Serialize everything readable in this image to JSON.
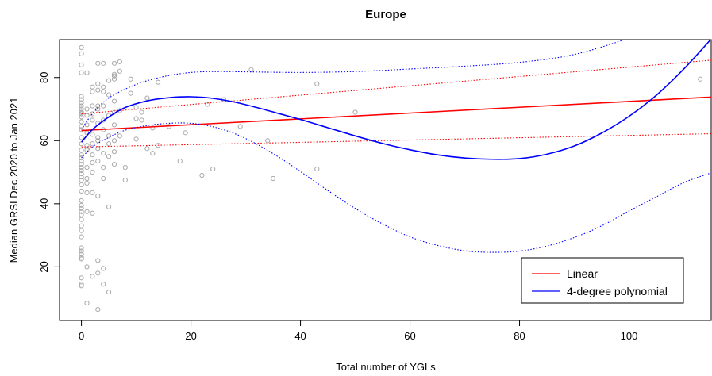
{
  "chart_data": {
    "type": "scatter",
    "title": "Europe",
    "xlabel": "Total number of YGLs",
    "ylabel": "Median GRSI Dec 2020 to Jan 2021",
    "xlim": [
      -4,
      115
    ],
    "ylim": [
      3,
      92
    ],
    "x_ticks": [
      0,
      20,
      40,
      60,
      80,
      100
    ],
    "y_ticks": [
      20,
      40,
      60,
      80
    ],
    "x_tick_labels": [
      "0",
      "20",
      "40",
      "60",
      "80",
      "100"
    ],
    "y_tick_labels": [
      "20",
      "40",
      "60",
      "80"
    ],
    "grid": false,
    "legend_position": "bottom-right",
    "colors": {
      "points": "#a9a9a9",
      "linear": "#ff0000",
      "poly": "#0000ff"
    },
    "points": {
      "x": [
        0,
        0,
        0,
        0,
        0,
        0,
        0,
        0,
        0,
        0,
        0,
        0,
        0,
        0,
        0,
        0,
        0,
        0,
        0,
        0,
        0,
        0,
        0,
        0,
        0,
        0,
        0,
        0,
        0,
        0,
        0,
        0,
        0,
        0,
        0,
        0,
        0,
        0,
        0,
        0,
        0,
        0,
        0,
        0,
        0,
        0,
        1,
        1,
        1,
        1,
        1,
        1,
        1,
        1,
        1,
        1,
        1,
        1,
        1,
        1,
        2,
        2,
        2,
        2,
        2,
        2,
        2,
        2,
        2,
        2,
        2,
        2,
        2,
        3,
        3,
        3,
        3,
        3,
        3,
        3,
        3,
        3,
        3,
        3,
        3,
        3,
        3,
        4,
        4,
        4,
        4,
        4,
        4,
        4,
        4,
        4,
        4,
        4,
        5,
        5,
        5,
        5,
        5,
        5,
        5,
        5,
        6,
        6,
        6,
        6,
        6,
        6,
        6,
        6,
        6,
        6,
        7,
        7,
        7,
        7,
        8,
        8,
        9,
        9,
        10,
        10,
        10,
        11,
        11,
        12,
        12,
        13,
        13,
        14,
        14,
        16,
        18,
        19,
        22,
        23,
        24,
        26,
        29,
        31,
        34,
        35,
        43,
        43,
        50,
        113
      ],
      "y": [
        89.5,
        87.5,
        84,
        81.5,
        74,
        73,
        72,
        71,
        70,
        69,
        68.5,
        67.5,
        66,
        64.5,
        63.5,
        61,
        59,
        57,
        55.5,
        54.5,
        53.5,
        52.5,
        51.5,
        50.5,
        49.5,
        48.5,
        47.5,
        46,
        44,
        41,
        39.5,
        38.5,
        37.5,
        36.5,
        35,
        33,
        31.5,
        29.5,
        26,
        25,
        24,
        23,
        22.5,
        16.5,
        14.5,
        14,
        81.5,
        70,
        68,
        65,
        62.5,
        58.5,
        57,
        51.5,
        48,
        46.5,
        43.5,
        37.5,
        20,
        8.5,
        77,
        75.5,
        71,
        68.5,
        66.5,
        62,
        59,
        55.5,
        53,
        50,
        43.5,
        37,
        17,
        84.5,
        78,
        76,
        71,
        70,
        65.5,
        61,
        60,
        57.5,
        53.5,
        42.5,
        22,
        18,
        6.5,
        84.5,
        77,
        75.5,
        71,
        66.5,
        63.5,
        56,
        51.5,
        48,
        19.5,
        14.5,
        79,
        74.5,
        68,
        61.5,
        59,
        55,
        39,
        12,
        84.5,
        81,
        80.5,
        79.5,
        72.5,
        69,
        65,
        60,
        56.5,
        52.5,
        85,
        82,
        69.5,
        61.5,
        51.5,
        47.5,
        79.5,
        75,
        70.5,
        67,
        60.5,
        69,
        66.5,
        73.5,
        57.5,
        64,
        56,
        78.5,
        58.5,
        64.5,
        53.5,
        62.5,
        49,
        71.5,
        51,
        73,
        64.5,
        82.5,
        60,
        48,
        78,
        51,
        69,
        79.5
      ]
    },
    "series": [
      {
        "name": "Linear",
        "type": "line",
        "style": "solid",
        "x": [
          0,
          115
        ],
        "y": [
          63.2,
          73.8
        ]
      },
      {
        "name": "",
        "type": "line",
        "style": "dotted",
        "x": [
          0,
          115
        ],
        "y": [
          68.5,
          85.5
        ]
      },
      {
        "name": "",
        "type": "line",
        "style": "dotted",
        "x": [
          0,
          115
        ],
        "y": [
          58.0,
          62.2
        ]
      },
      {
        "name": "4-degree polynomial",
        "type": "line",
        "style": "solid",
        "x": [
          0,
          2,
          5,
          8,
          12,
          16,
          20,
          24,
          28,
          32,
          36,
          40,
          45,
          50,
          55,
          60,
          65,
          70,
          75,
          80,
          85,
          90,
          95,
          100,
          105,
          110,
          115
        ],
        "y": [
          59.5,
          63.5,
          67.5,
          70.5,
          72.6,
          73.6,
          73.9,
          73.4,
          72.2,
          70.5,
          68.6,
          66.7,
          64.1,
          61.5,
          59.1,
          57.1,
          55.5,
          54.5,
          54.1,
          54.3,
          55.7,
          58.3,
          62.4,
          67.7,
          74.4,
          82.7,
          92.2
        ]
      },
      {
        "name": "",
        "type": "line",
        "style": "dotted",
        "x": [
          0,
          2,
          5,
          10,
          15,
          20,
          25,
          30,
          40,
          50,
          60,
          70,
          80,
          90,
          100,
          103
        ],
        "y": [
          63.5,
          68.5,
          73.5,
          77.8,
          80.3,
          81.6,
          81.9,
          81.8,
          81.6,
          81.9,
          82.7,
          83.6,
          84.8,
          87.3,
          92.5,
          95
        ]
      },
      {
        "name": "",
        "type": "line",
        "style": "dotted",
        "x": [
          0,
          2,
          5,
          8,
          12,
          16,
          20,
          24,
          28,
          32,
          36,
          40,
          45,
          50,
          55,
          60,
          65,
          70,
          75,
          80,
          85,
          90,
          95,
          100,
          105,
          110,
          115
        ],
        "y": [
          54.5,
          58.0,
          61.0,
          63.3,
          64.8,
          65.5,
          65.5,
          64.4,
          62.2,
          58.9,
          54.8,
          50.2,
          44.2,
          38.5,
          33.6,
          29.5,
          26.8,
          25.1,
          24.6,
          25.0,
          26.6,
          29.3,
          33.0,
          37.7,
          42.2,
          46.7,
          49.8
        ]
      }
    ],
    "legend": [
      {
        "label": "Linear",
        "color": "#ff0000"
      },
      {
        "label": "4-degree polynomial",
        "color": "#0000ff"
      }
    ]
  }
}
